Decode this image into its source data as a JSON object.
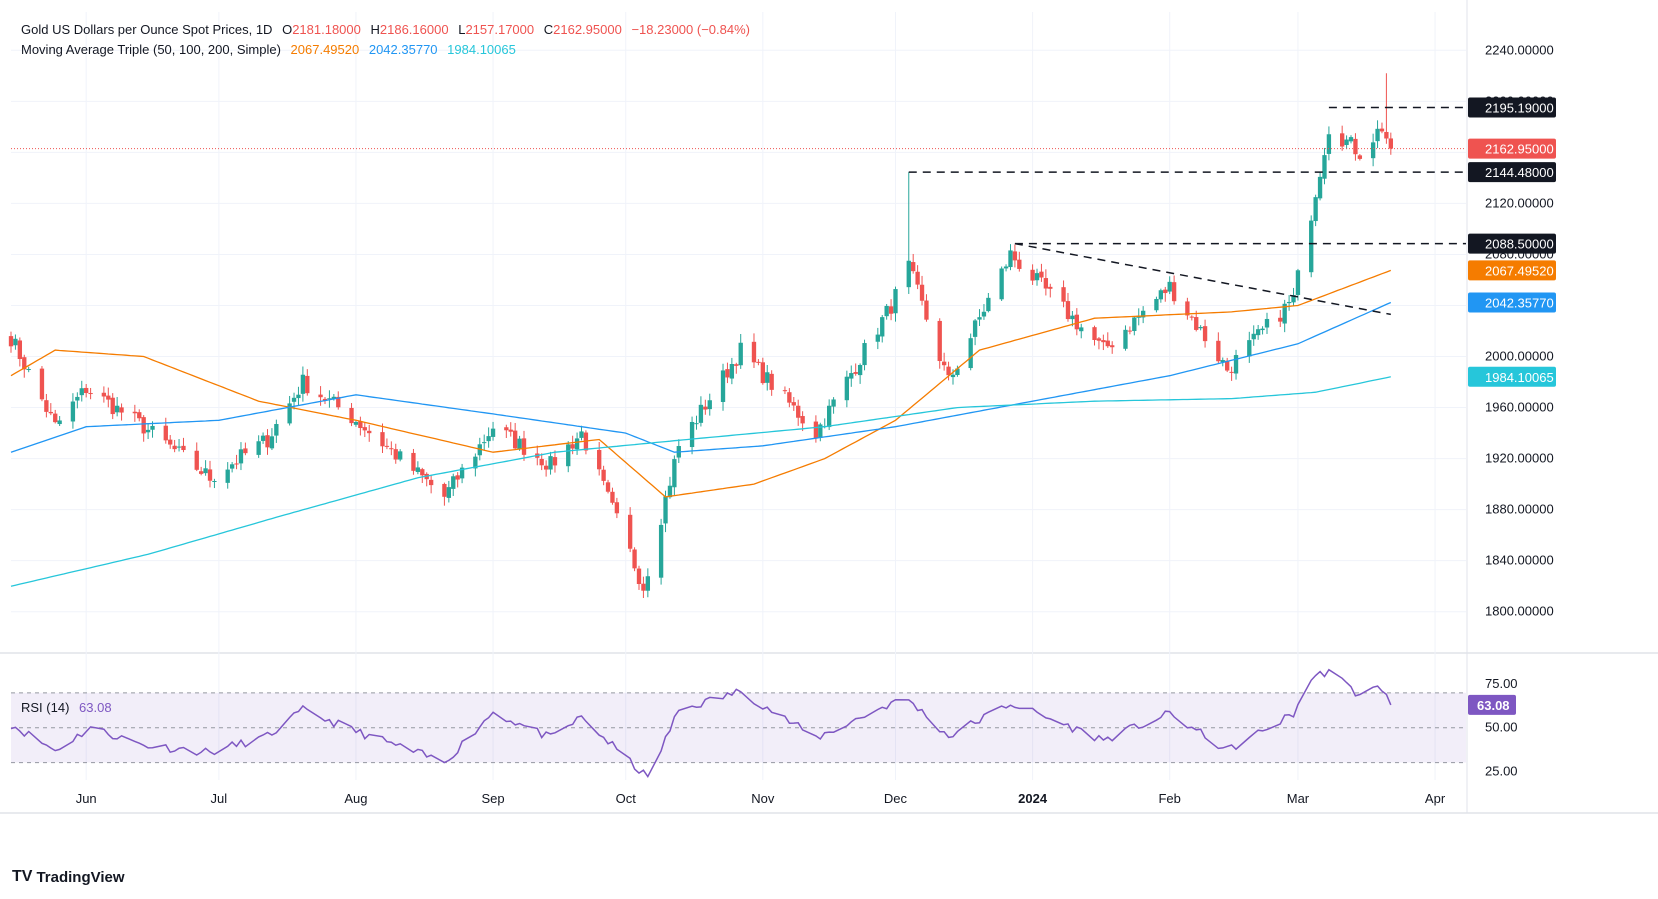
{
  "header": {
    "title": "Gold US Dollars per Ounce Spot Prices, 1D",
    "o_label": "O",
    "o_value": "2181.18000",
    "h_label": "H",
    "h_value": "2186.16000",
    "l_label": "L",
    "l_value": "2157.17000",
    "c_label": "C",
    "c_value": "2162.95000",
    "change": "−18.23000 (−0.84%)",
    "ma_title": "Moving Average Triple (50, 100, 200, Simple)",
    "ma50": "2067.49520",
    "ma100": "2042.35770",
    "ma200": "1984.10065",
    "rsi_title": "RSI (14)",
    "rsi_value": "63.08"
  },
  "brand": {
    "name": "TradingView",
    "logo": "TV"
  },
  "colors": {
    "up": "#26a69a",
    "down": "#ef5350",
    "ma50": "#f57c00",
    "ma100": "#2196f3",
    "ma200": "#26c6da",
    "rsi": "#7e57c2",
    "price_line": "#ef5350"
  },
  "chart_data": [
    {
      "type": "candlestick",
      "title": "Gold US Dollars per Ounce Spot Prices, 1D",
      "x_ticks": [
        "Jun",
        "Jul",
        "Aug",
        "Sep",
        "Oct",
        "Nov",
        "Dec",
        "2024",
        "Feb",
        "Mar",
        "Apr"
      ],
      "y_ticks": [
        "1800.00000",
        "1840.00000",
        "1880.00000",
        "1920.00000",
        "1960.00000",
        "2000.00000",
        "2040.00000",
        "2080.00000",
        "2120.00000",
        "2160.00000",
        "2200.00000",
        "2240.00000"
      ],
      "ylim": [
        1770,
        2270
      ],
      "series": [
        {
          "name": "Gold Spot",
          "keypoints": [
            {
              "x": "2023-05-15",
              "y": 2015
            },
            {
              "x": "2023-05-25",
              "y": 1945
            },
            {
              "x": "2023-06-01",
              "y": 1975
            },
            {
              "x": "2023-06-14",
              "y": 1945
            },
            {
              "x": "2023-06-29",
              "y": 1905
            },
            {
              "x": "2023-07-12",
              "y": 1935
            },
            {
              "x": "2023-07-20",
              "y": 1980
            },
            {
              "x": "2023-08-01",
              "y": 1950
            },
            {
              "x": "2023-08-21",
              "y": 1890
            },
            {
              "x": "2023-09-01",
              "y": 1945
            },
            {
              "x": "2023-09-14",
              "y": 1915
            },
            {
              "x": "2023-09-21",
              "y": 1940
            },
            {
              "x": "2023-10-05",
              "y": 1820
            },
            {
              "x": "2023-10-13",
              "y": 1930
            },
            {
              "x": "2023-10-27",
              "y": 2005
            },
            {
              "x": "2023-11-13",
              "y": 1940
            },
            {
              "x": "2023-11-30",
              "y": 2040
            },
            {
              "x": "2023-12-04",
              "y": 2070
            },
            {
              "x": "2023-12-13",
              "y": 1980
            },
            {
              "x": "2023-12-27",
              "y": 2080
            },
            {
              "x": "2024-01-17",
              "y": 2005
            },
            {
              "x": "2024-02-01",
              "y": 2055
            },
            {
              "x": "2024-02-14",
              "y": 1990
            },
            {
              "x": "2024-02-29",
              "y": 2045
            },
            {
              "x": "2024-03-05",
              "y": 2130
            },
            {
              "x": "2024-03-08",
              "y": 2180
            },
            {
              "x": "2024-03-15",
              "y": 2160
            },
            {
              "x": "2024-03-20",
              "y": 2180
            },
            {
              "x": "2024-03-22",
              "y": 2162.95
            }
          ]
        },
        {
          "name": "MA 50",
          "value": 2067.4952,
          "keypoints": [
            {
              "x": "2023-05-15",
              "y": 1985
            },
            {
              "x": "2023-05-25",
              "y": 2005
            },
            {
              "x": "2023-06-14",
              "y": 2000
            },
            {
              "x": "2023-07-10",
              "y": 1965
            },
            {
              "x": "2023-08-01",
              "y": 1950
            },
            {
              "x": "2023-09-01",
              "y": 1925
            },
            {
              "x": "2023-09-25",
              "y": 1935
            },
            {
              "x": "2023-10-10",
              "y": 1890
            },
            {
              "x": "2023-10-30",
              "y": 1900
            },
            {
              "x": "2023-11-15",
              "y": 1920
            },
            {
              "x": "2023-12-01",
              "y": 1950
            },
            {
              "x": "2023-12-20",
              "y": 2005
            },
            {
              "x": "2024-01-15",
              "y": 2030
            },
            {
              "x": "2024-02-15",
              "y": 2035
            },
            {
              "x": "2024-03-01",
              "y": 2040
            },
            {
              "x": "2024-03-22",
              "y": 2067.5
            }
          ]
        },
        {
          "name": "MA 100",
          "value": 2042.3577,
          "keypoints": [
            {
              "x": "2023-05-15",
              "y": 1925
            },
            {
              "x": "2023-06-01",
              "y": 1945
            },
            {
              "x": "2023-07-01",
              "y": 1950
            },
            {
              "x": "2023-08-01",
              "y": 1970
            },
            {
              "x": "2023-09-01",
              "y": 1955
            },
            {
              "x": "2023-10-01",
              "y": 1940
            },
            {
              "x": "2023-10-12",
              "y": 1925
            },
            {
              "x": "2023-11-01",
              "y": 1930
            },
            {
              "x": "2023-12-01",
              "y": 1945
            },
            {
              "x": "2024-01-01",
              "y": 1965
            },
            {
              "x": "2024-02-01",
              "y": 1985
            },
            {
              "x": "2024-03-01",
              "y": 2010
            },
            {
              "x": "2024-03-22",
              "y": 2042.36
            }
          ]
        },
        {
          "name": "MA 200",
          "value": 1984.10065,
          "keypoints": [
            {
              "x": "2023-05-15",
              "y": 1820
            },
            {
              "x": "2023-06-15",
              "y": 1845
            },
            {
              "x": "2023-07-15",
              "y": 1875
            },
            {
              "x": "2023-08-15",
              "y": 1905
            },
            {
              "x": "2023-09-15",
              "y": 1925
            },
            {
              "x": "2023-10-15",
              "y": 1935
            },
            {
              "x": "2023-11-15",
              "y": 1945
            },
            {
              "x": "2023-12-15",
              "y": 1960
            },
            {
              "x": "2024-01-15",
              "y": 1965
            },
            {
              "x": "2024-02-15",
              "y": 1967
            },
            {
              "x": "2024-03-05",
              "y": 1972
            },
            {
              "x": "2024-03-22",
              "y": 1984.1
            }
          ]
        }
      ],
      "levels": [
        {
          "label": "2195.19000",
          "value": 2195.19,
          "from": "2024-03-08"
        },
        {
          "label": "2144.48000",
          "value": 2144.48,
          "from": "2023-12-04"
        },
        {
          "label": "2088.50000",
          "value": 2088.5,
          "from": "2023-12-28"
        }
      ],
      "trendline": {
        "from": {
          "x": "2023-12-28",
          "y": 2088.5
        },
        "to": {
          "x": "2024-03-22",
          "y": 2033
        }
      },
      "spike": {
        "x": "2024-03-21",
        "high": 2222
      },
      "december_spike": {
        "x": "2023-12-04",
        "high": 2144.48
      },
      "price_labels": [
        {
          "label": "2162.95000",
          "value": 2162.95,
          "color": "#ef5350"
        },
        {
          "label": "2067.49520",
          "value": 2067.4952,
          "color": "#f57c00"
        },
        {
          "label": "2042.35770",
          "value": 2042.3577,
          "color": "#2196f3"
        },
        {
          "label": "1984.10065",
          "value": 1984.10065,
          "color": "#26c6da"
        }
      ]
    },
    {
      "type": "line",
      "title": "RSI (14)",
      "y_ticks": [
        "25.00",
        "50.00",
        "75.00"
      ],
      "ylim": [
        20,
        90
      ],
      "band": [
        30,
        70
      ],
      "series": [
        {
          "name": "RSI",
          "keypoints": [
            {
              "x": "2023-05-15",
              "y": 52
            },
            {
              "x": "2023-05-25",
              "y": 37
            },
            {
              "x": "2023-06-02",
              "y": 50
            },
            {
              "x": "2023-06-14",
              "y": 40
            },
            {
              "x": "2023-06-29",
              "y": 36
            },
            {
              "x": "2023-07-12",
              "y": 45
            },
            {
              "x": "2023-07-20",
              "y": 60
            },
            {
              "x": "2023-08-01",
              "y": 48
            },
            {
              "x": "2023-08-21",
              "y": 30
            },
            {
              "x": "2023-09-01",
              "y": 59
            },
            {
              "x": "2023-09-14",
              "y": 44
            },
            {
              "x": "2023-09-21",
              "y": 56
            },
            {
              "x": "2023-10-06",
              "y": 21
            },
            {
              "x": "2023-10-13",
              "y": 60
            },
            {
              "x": "2023-10-27",
              "y": 71
            },
            {
              "x": "2023-11-13",
              "y": 44
            },
            {
              "x": "2023-11-30",
              "y": 64
            },
            {
              "x": "2023-12-04",
              "y": 66
            },
            {
              "x": "2023-12-13",
              "y": 45
            },
            {
              "x": "2023-12-27",
              "y": 64
            },
            {
              "x": "2024-01-17",
              "y": 43
            },
            {
              "x": "2024-02-01",
              "y": 58
            },
            {
              "x": "2024-02-14",
              "y": 37
            },
            {
              "x": "2024-02-29",
              "y": 58
            },
            {
              "x": "2024-03-04",
              "y": 78
            },
            {
              "x": "2024-03-08",
              "y": 83
            },
            {
              "x": "2024-03-14",
              "y": 70
            },
            {
              "x": "2024-03-20",
              "y": 73
            },
            {
              "x": "2024-03-22",
              "y": 63.08
            }
          ]
        }
      ]
    }
  ]
}
